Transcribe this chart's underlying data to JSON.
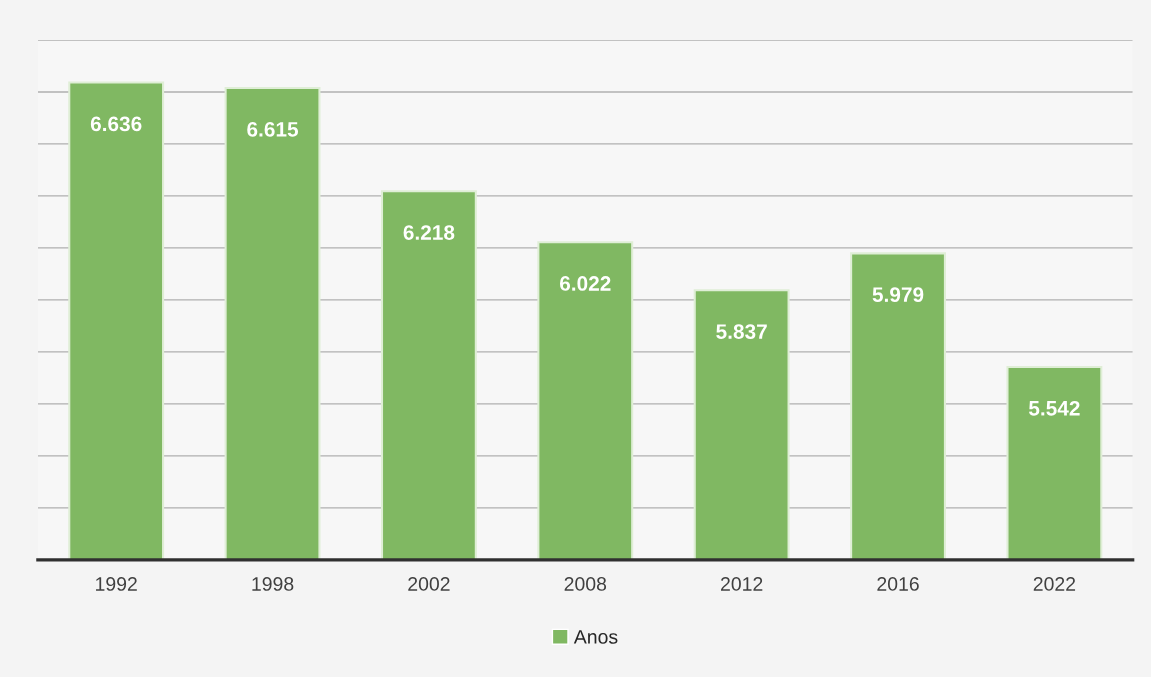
{
  "chart_data": {
    "type": "bar",
    "categories": [
      "1992",
      "1998",
      "2002",
      "2008",
      "2012",
      "2016",
      "2022"
    ],
    "series": [
      {
        "name": "Anos",
        "color": "#80b862",
        "values": [
          6.636,
          6.615,
          6.218,
          6.022,
          5.837,
          5.979,
          5.542
        ]
      }
    ],
    "ylim": [
      4.8,
      6.8
    ],
    "yticks": [
      {
        "value": 5.0,
        "label": null
      },
      {
        "value": 5.2,
        "label": null
      },
      {
        "value": 5.4,
        "label": null
      },
      {
        "value": 5.6,
        "label": null
      },
      {
        "value": 5.8,
        "label": null
      },
      {
        "value": 6.0,
        "label": null
      },
      {
        "value": 6.2,
        "label": null
      },
      {
        "value": 6.4,
        "label": null
      },
      {
        "value": 6.6,
        "label": null
      },
      {
        "value": 6.8,
        "label": null
      }
    ],
    "tick_labels": "x",
    "grid": "y",
    "data_labels": true,
    "legend": "bottom"
  }
}
